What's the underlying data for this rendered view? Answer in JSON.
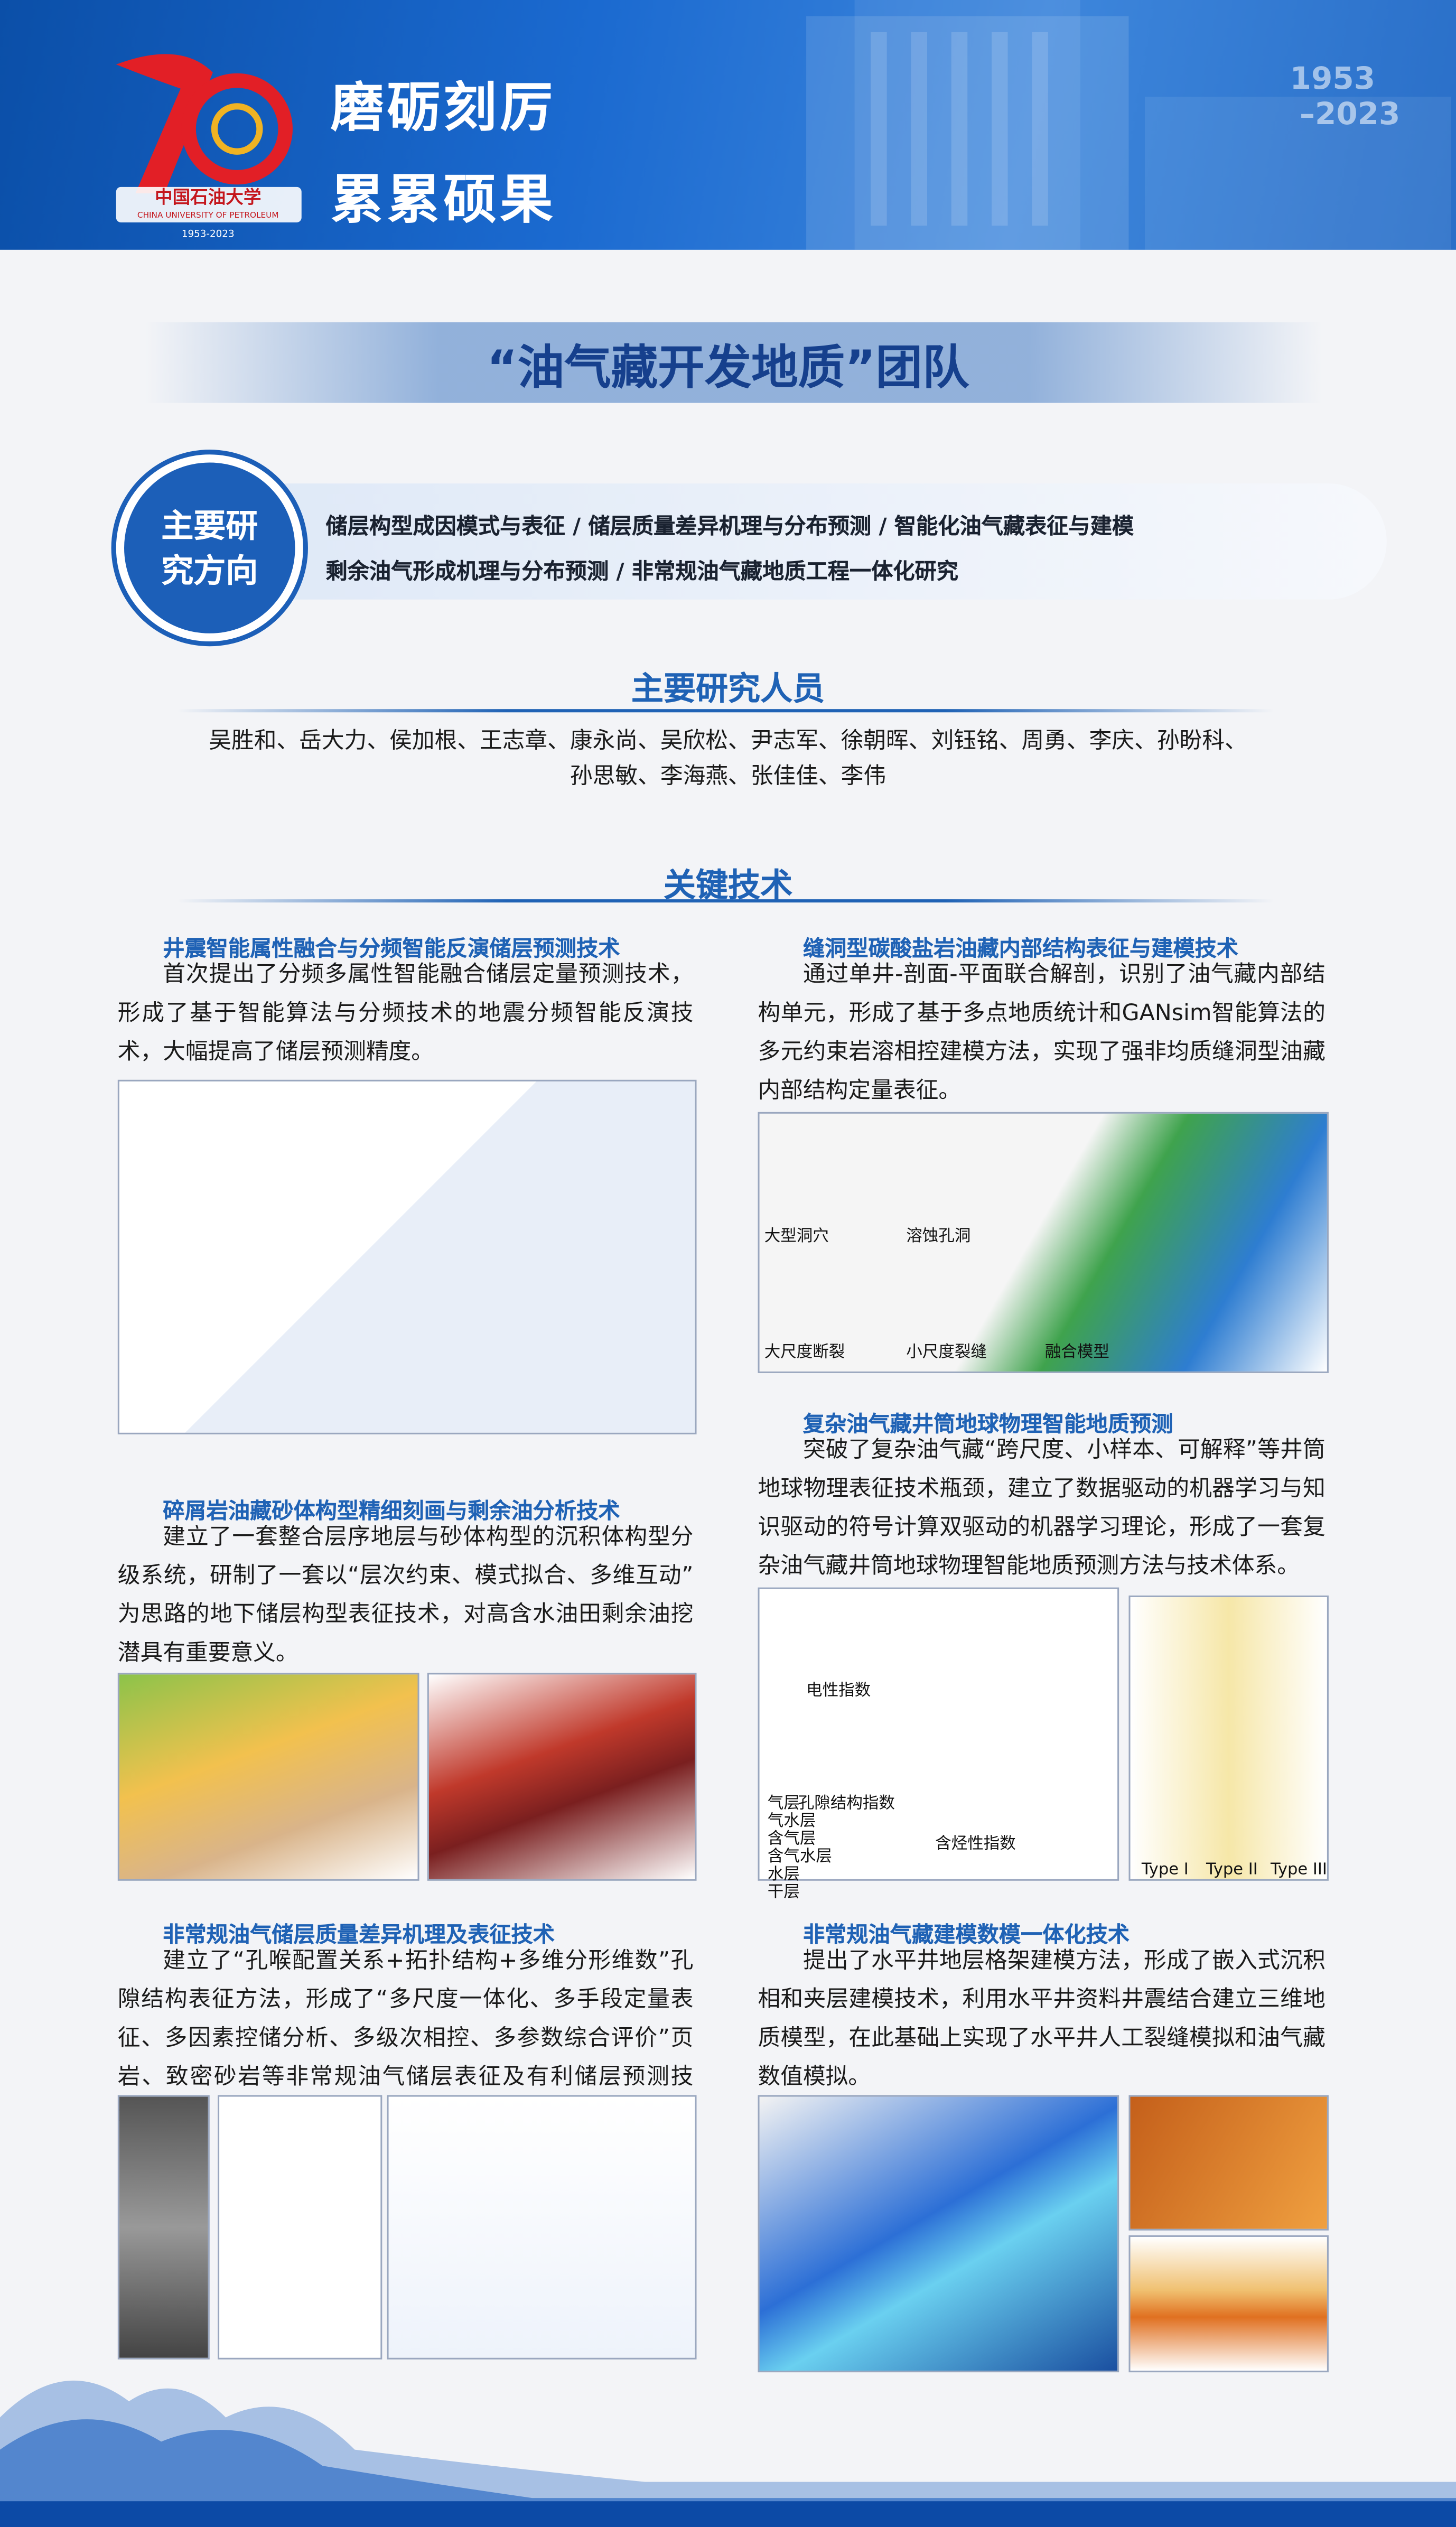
{
  "header": {
    "slogan_line1": "磨砺刻厉",
    "slogan_line2": "累累硕果",
    "years_start": "1953",
    "years_end": "–2023",
    "logo_cn": "中国石油大学",
    "logo_en": "CHINA UNIVERSITY OF PETROLEUM",
    "logo_years": "1953-2023"
  },
  "team_title": "“油气藏开发地质”团队",
  "research_directions": {
    "label": "主要研究方向",
    "items": [
      "储层构型成因模式与表征 / 储层质量差异机理与分布预测 / 智能化油气藏表征与建模",
      "剩余油气形成机理与分布预测 / 非常规油气藏地质工程一体化研究"
    ]
  },
  "researchers": {
    "title": "主要研究人员",
    "lines": [
      "吴胜和、岳大力、侯加根、王志章、康永尚、吴欣松、尹志军、徐朝晖、刘钰铭、周勇、李庆、孙盼科、",
      "孙思敏、李海燕、张佳佳、李伟"
    ]
  },
  "key_tech": {
    "title": "关键技术",
    "items": [
      {
        "heading": "井震智能属性融合与分频智能反演储层预测技术",
        "text": "首次提出了分频多属性智能融合储层定量预测技术，形成了基于智能算法与分频技术的地震分频智能反演技术，大幅提高了储层预测精度。"
      },
      {
        "heading": "碎屑岩油藏砂体构型精细刻画与剩余油分析技术",
        "text": "建立了一套整合层序地层与砂体构型的沉积体构型分级系统，研制了一套以“层次约束、模式拟合、多维互动”为思路的地下储层构型表征技术，对高含水油田剩余油挖潜具有重要意义。"
      },
      {
        "heading": "非常规油气储层质量差异机理及表征技术",
        "text": "建立了“孔喉配置关系+拓扑结构+多维分形维数”孔隙结构表征方法，形成了“多尺度一体化、多手段定量表征、多因素控储分析、多级次相控、多参数综合评价”页岩、致密砂岩等非常规油气储层表征及有利储层预测技术。"
      },
      {
        "heading": "缝洞型碳酸盐岩油藏内部结构表征与建模技术",
        "text": "通过单井-剖面-平面联合解剖，识别了油气藏内部结构单元，形成了基于多点地质统计和GANsim智能算法的多元约束岩溶相控建模方法，实现了强非均质缝洞型油藏内部结构定量表征。",
        "figure_labels": [
          "大型洞穴",
          "溶蚀孔洞",
          "大尺度断裂",
          "小尺度裂缝",
          "融合模型"
        ]
      },
      {
        "heading": "复杂油气藏井筒地球物理智能地质预测",
        "text": "突破了复杂油气藏“跨尺度、小样本、可解释”等井筒地球物理表征技术瓶颈，建立了数据驱动的机器学习与知识驱动的符号计算双驱动的机器学习理论，形成了一套复杂油气藏井筒地球物理智能地质预测方法与技术体系。",
        "figure_labels": [
          "电性指数",
          "孔隙结构指数",
          "含烃性指数",
          "气层",
          "气水层",
          "含气层",
          "含气水层",
          "水层",
          "干层",
          "Type I",
          "Type II",
          "Type III"
        ]
      },
      {
        "heading": "非常规油气藏建模数模一体化技术",
        "text": "提出了水平井地层格架建模方法，形成了嵌入式沉积相和夹层建模技术，利用水平井资料井震结合建立三维地质模型，在此基础上实现了水平井人工裂缝模拟和油气藏数值模拟。"
      }
    ]
  }
}
